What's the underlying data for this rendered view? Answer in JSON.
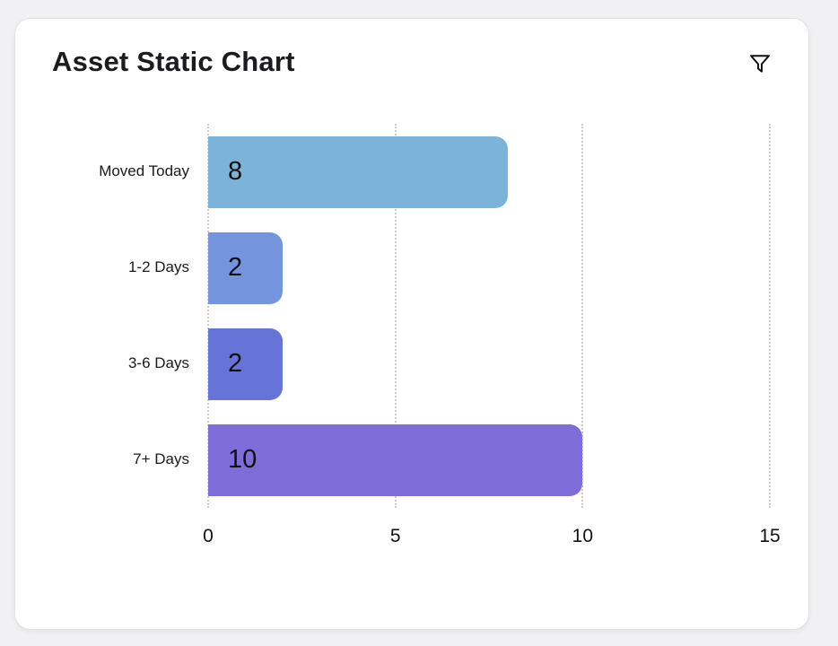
{
  "card": {
    "title": "Asset Static Chart"
  },
  "chart_data": {
    "type": "bar",
    "orientation": "horizontal",
    "title": "Asset Static Chart",
    "categories": [
      "Moved Today",
      "1-2 Days",
      "3-6 Days",
      "7+ Days"
    ],
    "values": [
      8,
      2,
      2,
      10
    ],
    "bar_colors": [
      "#7bb3d9",
      "#7594de",
      "#6774d7",
      "#7e6cd8"
    ],
    "value_label_color": "#111111",
    "xlabel": "",
    "ylabel": "",
    "xlim": [
      0,
      15
    ],
    "xticks": [
      0,
      5,
      10,
      15
    ],
    "grid": "vertical-dotted",
    "gridline_color": "#cccccc",
    "legend": "none"
  },
  "icons": {
    "filter": "funnel-filter-icon"
  },
  "colors": {
    "page_bg": "#f1f1f3",
    "card_bg": "#ffffff",
    "card_border": "#e3e3e6",
    "title_text": "#1c1c1e",
    "label_text": "#1a1a1a"
  }
}
